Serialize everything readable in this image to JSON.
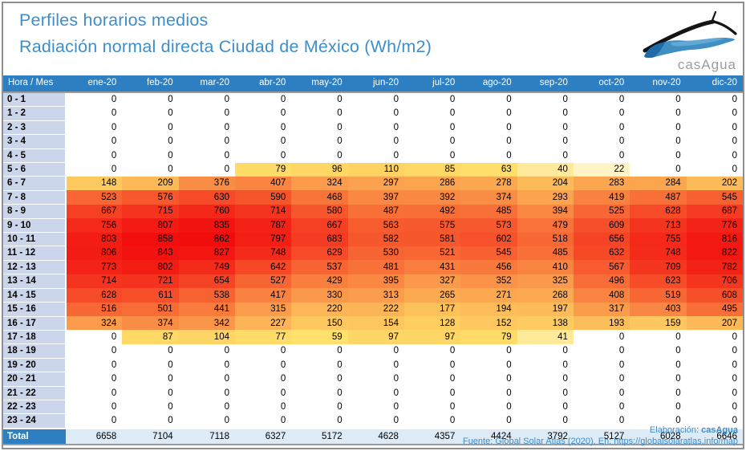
{
  "header": {
    "title_line1": "Perfiles horarios medios",
    "title_line2": "Radiación normal directa Ciudad de México (Wh/m2)",
    "logo_text": "casAgua"
  },
  "footer": {
    "elaboracion_label": "Elaboración: ",
    "elaboracion_value": "casAgua",
    "fuente_text": "Fuente: Global Solar Atlas (2020). En: https://globalsolaratlas.info/map"
  },
  "colors": {
    "title_blue": "#3d8ecb",
    "footer_blue": "#2e86c5",
    "header_blue": "#2e7fc2",
    "row_header_bg": "#cbd6eb",
    "total_cell_bg": "#ddebf7",
    "heat_min": "#ffffff",
    "heat_mid": "#ffe069",
    "heat_max": "#f20d0d",
    "logo_gray": "#9c9c9c"
  },
  "chart_data": {
    "type": "heatmap",
    "title": "Perfiles horarios medios",
    "subtitle": "Radiación normal directa Ciudad de México (Wh/m2)",
    "unit": "Wh/m2",
    "row_label_header": "Hora / Mes",
    "columns": [
      "ene-20",
      "feb-20",
      "mar-20",
      "abr-20",
      "may-20",
      "jun-20",
      "jul-20",
      "ago-20",
      "sep-20",
      "oct-20",
      "nov-20",
      "dic-20"
    ],
    "rows": [
      "0 - 1",
      "1 - 2",
      "2 - 3",
      "3 - 4",
      "4 - 5",
      "5 - 6",
      "6 - 7",
      "7 - 8",
      "8 - 9",
      "9 - 10",
      "10 - 11",
      "11 - 12",
      "12 - 13",
      "13 - 14",
      "14 - 15",
      "15 - 16",
      "16 - 17",
      "17 - 18",
      "18 - 19",
      "19 - 20",
      "20 - 21",
      "21 - 22",
      "22 - 23",
      "23 - 24"
    ],
    "values": [
      [
        0,
        0,
        0,
        0,
        0,
        0,
        0,
        0,
        0,
        0,
        0,
        0
      ],
      [
        0,
        0,
        0,
        0,
        0,
        0,
        0,
        0,
        0,
        0,
        0,
        0
      ],
      [
        0,
        0,
        0,
        0,
        0,
        0,
        0,
        0,
        0,
        0,
        0,
        0
      ],
      [
        0,
        0,
        0,
        0,
        0,
        0,
        0,
        0,
        0,
        0,
        0,
        0
      ],
      [
        0,
        0,
        0,
        0,
        0,
        0,
        0,
        0,
        0,
        0,
        0,
        0
      ],
      [
        0,
        0,
        0,
        79,
        96,
        110,
        85,
        63,
        40,
        22,
        0,
        0
      ],
      [
        148,
        209,
        376,
        407,
        324,
        297,
        286,
        278,
        204,
        283,
        284,
        202
      ],
      [
        523,
        576,
        630,
        590,
        468,
        397,
        392,
        374,
        293,
        419,
        487,
        545
      ],
      [
        667,
        715,
        760,
        714,
        580,
        487,
        492,
        485,
        394,
        525,
        628,
        687
      ],
      [
        756,
        807,
        835,
        787,
        667,
        563,
        575,
        573,
        479,
        609,
        713,
        776
      ],
      [
        803,
        858,
        862,
        797,
        683,
        582,
        581,
        602,
        518,
        656,
        755,
        816
      ],
      [
        806,
        843,
        827,
        748,
        629,
        530,
        521,
        545,
        485,
        632,
        748,
        822
      ],
      [
        773,
        802,
        749,
        642,
        537,
        481,
        431,
        456,
        410,
        567,
        709,
        782
      ],
      [
        714,
        721,
        654,
        527,
        429,
        395,
        327,
        352,
        325,
        496,
        623,
        706
      ],
      [
        628,
        611,
        538,
        417,
        330,
        313,
        265,
        271,
        268,
        408,
        519,
        608
      ],
      [
        516,
        501,
        441,
        315,
        220,
        222,
        177,
        194,
        197,
        317,
        403,
        495
      ],
      [
        324,
        374,
        342,
        227,
        150,
        154,
        128,
        152,
        138,
        193,
        159,
        207
      ],
      [
        0,
        87,
        104,
        77,
        59,
        97,
        97,
        79,
        41,
        0,
        0,
        0
      ],
      [
        0,
        0,
        0,
        0,
        0,
        0,
        0,
        0,
        0,
        0,
        0,
        0
      ],
      [
        0,
        0,
        0,
        0,
        0,
        0,
        0,
        0,
        0,
        0,
        0,
        0
      ],
      [
        0,
        0,
        0,
        0,
        0,
        0,
        0,
        0,
        0,
        0,
        0,
        0
      ],
      [
        0,
        0,
        0,
        0,
        0,
        0,
        0,
        0,
        0,
        0,
        0,
        0
      ],
      [
        0,
        0,
        0,
        0,
        0,
        0,
        0,
        0,
        0,
        0,
        0,
        0
      ],
      [
        0,
        0,
        0,
        0,
        0,
        0,
        0,
        0,
        0,
        0,
        0,
        0
      ]
    ],
    "total_label": "Total",
    "totals": [
      6658,
      7104,
      7118,
      6327,
      5172,
      4628,
      4357,
      4424,
      3792,
      5127,
      6028,
      6646
    ],
    "scale": {
      "min": 0,
      "mid": 60,
      "max": 862
    },
    "legend": "color scale white (0) to yellow to red (max)"
  }
}
